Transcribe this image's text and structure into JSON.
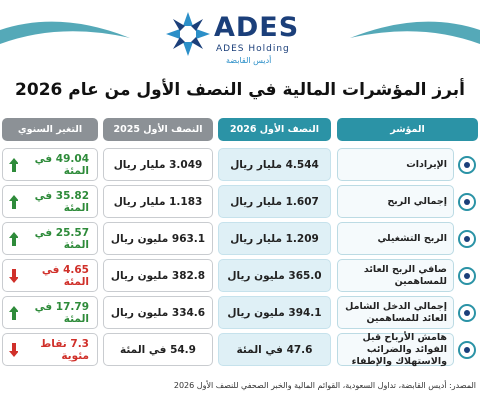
{
  "header": {
    "brand": "ADES",
    "brand_sub": "ADES Holding",
    "brand_ar": "أديس القابضة",
    "title": "أبرز المؤشرات المالية في النصف الأول من عام 2026"
  },
  "table": {
    "columns": [
      "المؤشر",
      "النصف الأول 2026",
      "النصف الأول 2025",
      "التغير السنوي"
    ],
    "rows": [
      {
        "indicator": "الإيرادات",
        "h1_2026": "4.544 مليار ريال",
        "h1_2025": "3.049 مليار ريال",
        "change": "49.04 في المئة",
        "direction": "up"
      },
      {
        "indicator": "إجمالي الربح",
        "h1_2026": "1.607 مليار ريال",
        "h1_2025": "1.183 مليار ريال",
        "change": "35.82 في المئة",
        "direction": "up"
      },
      {
        "indicator": "الربح التشغيلي",
        "h1_2026": "1.209 مليار ريال",
        "h1_2025": "963.1 مليون ريال",
        "change": "25.57 في المئة",
        "direction": "up"
      },
      {
        "indicator": "صافي الربح العائد للمساهمين",
        "h1_2026": "365.0 مليون ريال",
        "h1_2025": "382.8 مليون ريال",
        "change": "4.65 في المئة",
        "direction": "down"
      },
      {
        "indicator": "إجمالي الدخل الشامل العائد للمساهمين",
        "h1_2026": "394.1 مليون ريال",
        "h1_2025": "334.6 مليون ريال",
        "change": "17.79 في المئة",
        "direction": "up"
      },
      {
        "indicator": "هامش الأرباح قبل الفوائد والضرائب والاستهلاك والإطفاء",
        "h1_2026": "47.6 في المئة",
        "h1_2025": "54.9 في المئة",
        "change": "7.3 نقاط مئوية",
        "direction": "down"
      }
    ]
  },
  "footer": {
    "source": "المصدر: أديس القابضة، تداول السعودية، القوائم المالية والخبر الصحفي للنصف الأول 2026"
  }
}
